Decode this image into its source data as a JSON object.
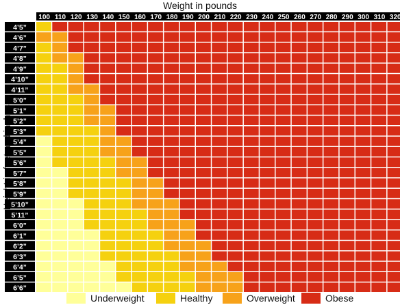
{
  "chart_data": {
    "type": "heatmap",
    "xlabel": "Weight in pounds",
    "ylabel": "Height in feet and inches",
    "x": [
      100,
      110,
      120,
      130,
      140,
      150,
      160,
      170,
      180,
      190,
      200,
      210,
      220,
      230,
      240,
      250,
      260,
      270,
      280,
      290,
      300,
      310,
      320
    ],
    "y": [
      "4’5”",
      "4’6”",
      "4’7”",
      "4’8”",
      "4’9”",
      "4’10”",
      "4’11”",
      "5’0”",
      "5’1”",
      "5’2”",
      "5’3”",
      "5’4”",
      "5’5”",
      "5’6”",
      "5’7”",
      "5’8”",
      "5’9”",
      "5’10”",
      "5’11”",
      "6’0”",
      "6’1”",
      "6’2”",
      "6’3”",
      "6’4”",
      "6’5”",
      "6’6”"
    ],
    "categories": [
      {
        "label": "Underweight",
        "color": "#ffff99"
      },
      {
        "label": "Healthy",
        "color": "#f5d10f"
      },
      {
        "label": "Overweight",
        "color": "#f7a21a"
      },
      {
        "label": "Obese",
        "color": "#d72c16"
      }
    ],
    "category_bounds": [
      {
        "underweight_max": 0,
        "healthy_max": 1,
        "overweight_max": 1
      },
      {
        "underweight_max": 0,
        "healthy_max": 0,
        "overweight_max": 2
      },
      {
        "underweight_max": 0,
        "healthy_max": 1,
        "overweight_max": 2
      },
      {
        "underweight_max": 0,
        "healthy_max": 1,
        "overweight_max": 3
      },
      {
        "underweight_max": 0,
        "healthy_max": 2,
        "overweight_max": 3
      },
      {
        "underweight_max": 0,
        "healthy_max": 2,
        "overweight_max": 3
      },
      {
        "underweight_max": 0,
        "healthy_max": 2,
        "overweight_max": 4
      },
      {
        "underweight_max": 0,
        "healthy_max": 3,
        "overweight_max": 4
      },
      {
        "underweight_max": 0,
        "healthy_max": 3,
        "overweight_max": 5
      },
      {
        "underweight_max": 0,
        "healthy_max": 3,
        "overweight_max": 5
      },
      {
        "underweight_max": 0,
        "healthy_max": 4,
        "overweight_max": 5
      },
      {
        "underweight_max": 1,
        "healthy_max": 4,
        "overweight_max": 6
      },
      {
        "underweight_max": 1,
        "healthy_max": 4,
        "overweight_max": 6
      },
      {
        "underweight_max": 1,
        "healthy_max": 5,
        "overweight_max": 7
      },
      {
        "underweight_max": 2,
        "healthy_max": 5,
        "overweight_max": 7
      },
      {
        "underweight_max": 2,
        "healthy_max": 6,
        "overweight_max": 8
      },
      {
        "underweight_max": 2,
        "healthy_max": 6,
        "overweight_max": 8
      },
      {
        "underweight_max": 3,
        "healthy_max": 6,
        "overweight_max": 9
      },
      {
        "underweight_max": 3,
        "healthy_max": 7,
        "overweight_max": 9
      },
      {
        "underweight_max": 3,
        "healthy_max": 7,
        "overweight_max": 10
      },
      {
        "underweight_max": 4,
        "healthy_max": 8,
        "overweight_max": 10
      },
      {
        "underweight_max": 4,
        "healthy_max": 8,
        "overweight_max": 11
      },
      {
        "underweight_max": 4,
        "healthy_max": 9,
        "overweight_max": 11
      },
      {
        "underweight_max": 5,
        "healthy_max": 9,
        "overweight_max": 12
      },
      {
        "underweight_max": 5,
        "healthy_max": 10,
        "overweight_max": 13
      },
      {
        "underweight_max": 6,
        "healthy_max": 10,
        "overweight_max": 13
      }
    ],
    "grid": true,
    "legend_position": "bottom"
  }
}
